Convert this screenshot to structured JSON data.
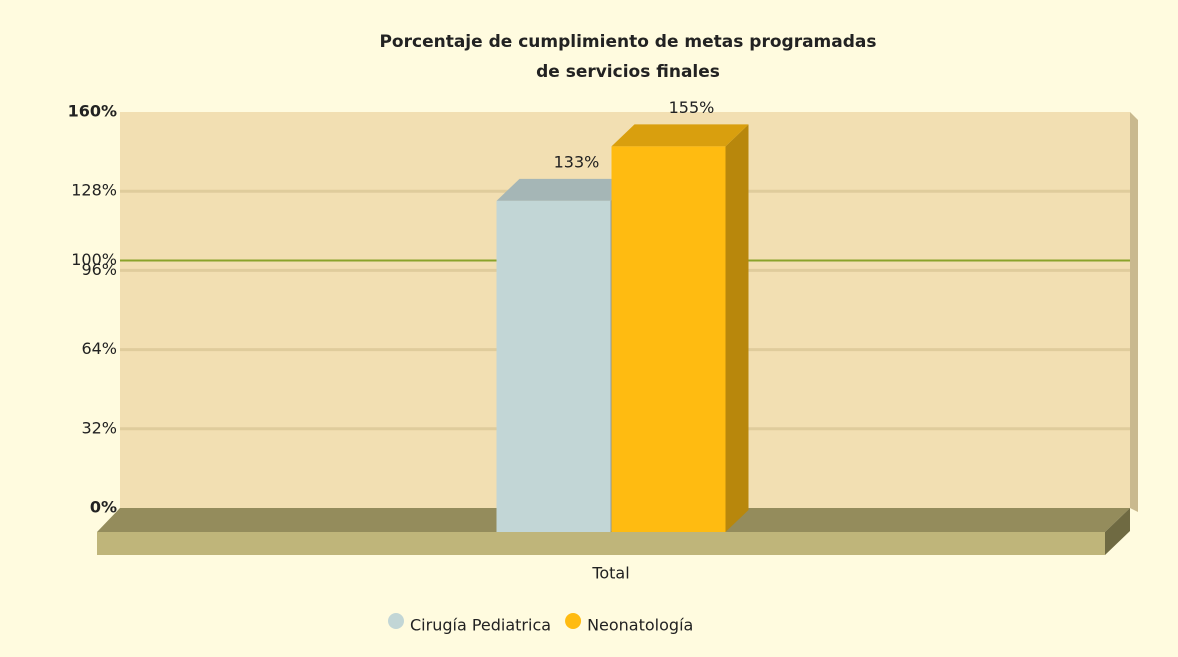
{
  "chart_data": {
    "type": "bar3d",
    "title": [
      "Porcentaje de cumplimiento de metas programadas",
      "de servicios finales"
    ],
    "categories": [
      "Total"
    ],
    "series": [
      {
        "name": "Cirugía Pediatrica",
        "color": "#c2d6d6",
        "values": [
          133
        ],
        "value_labels": [
          "133%"
        ]
      },
      {
        "name": "Neonatología",
        "color": "#ffbb11",
        "values": [
          155
        ],
        "value_labels": [
          "155%"
        ]
      }
    ],
    "ylim": [
      0,
      160
    ],
    "yticks": [
      {
        "value": 0,
        "label": "0%"
      },
      {
        "value": 32,
        "label": "32%"
      },
      {
        "value": 64,
        "label": "64%"
      },
      {
        "value": 96,
        "label": "96%"
      },
      {
        "value": 128,
        "label": "128%"
      },
      {
        "value": 160,
        "label": "160%"
      }
    ],
    "reference_line": {
      "value": 100,
      "label": "100%",
      "color": "#8aa32a"
    },
    "grid": true,
    "legend": "bottom"
  }
}
